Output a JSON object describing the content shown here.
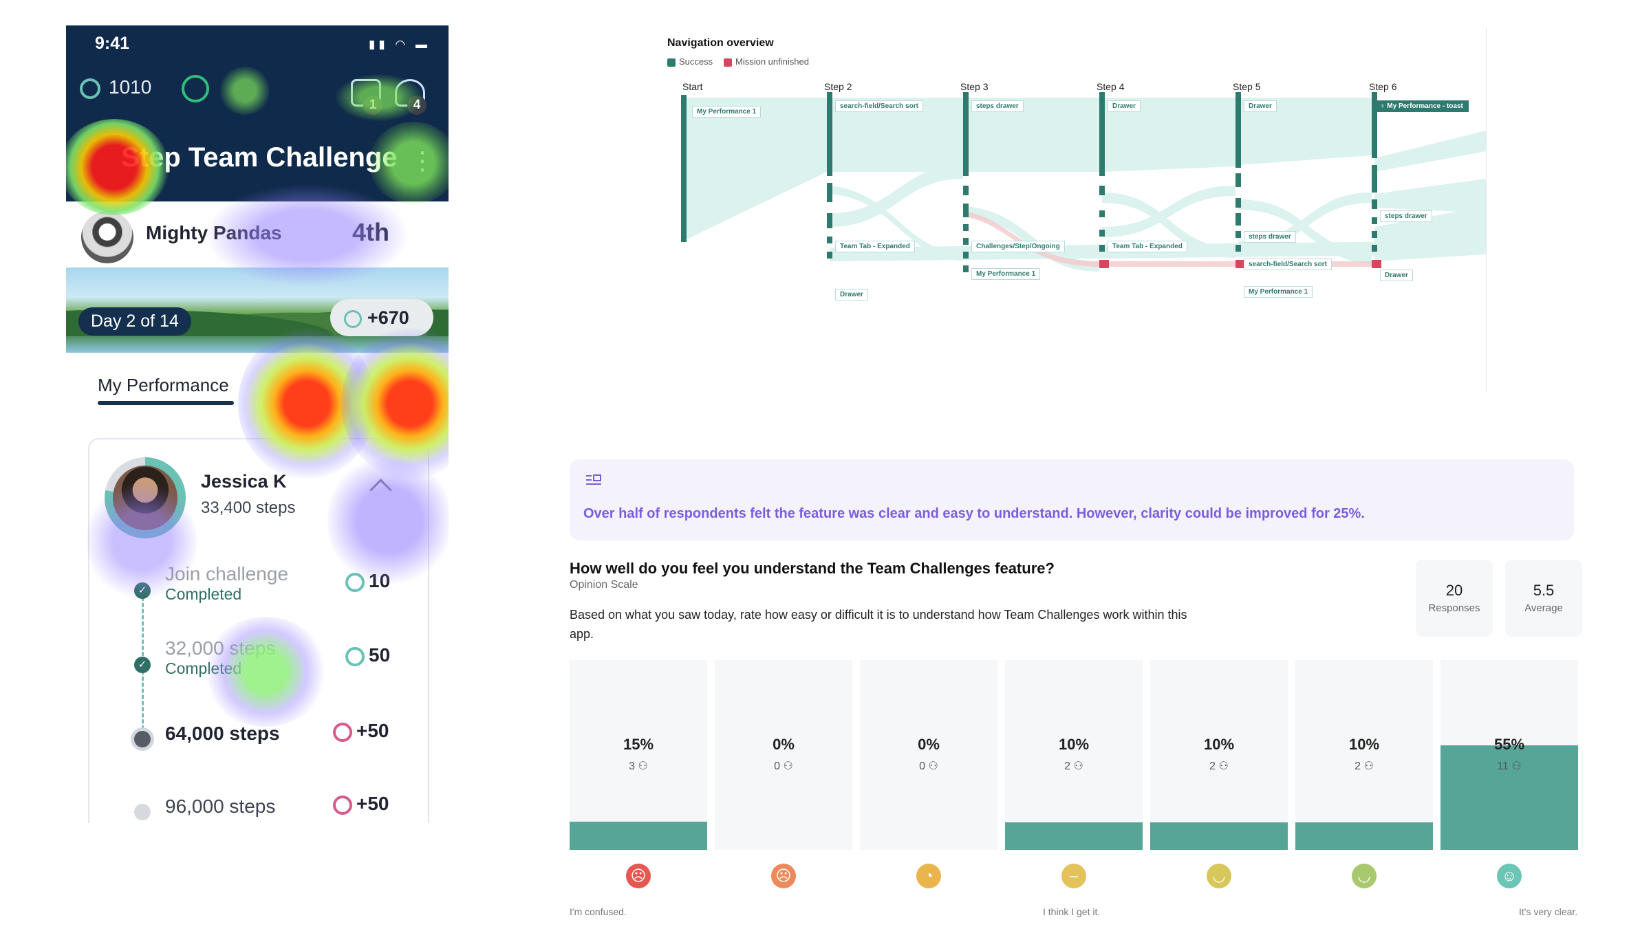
{
  "phone": {
    "status_time": "9:41",
    "points": "1010",
    "messages_badge": "1",
    "notifications_badge": "4",
    "title": "Step Team Challenge",
    "team": {
      "name": "Mighty Pandas",
      "rank": "4th"
    },
    "banner": {
      "day": "Day 2 of 14",
      "bonus": "+670"
    },
    "tabs": [
      {
        "label": "My Performance",
        "active": true
      }
    ],
    "profile": {
      "name": "Jessica K",
      "steps": "33,400 steps"
    },
    "milestones": [
      {
        "title": "Join challenge",
        "status": "Completed",
        "reward": "10",
        "state": "done"
      },
      {
        "title": "32,000 steps",
        "status": "Completed",
        "reward": "50",
        "state": "done"
      },
      {
        "title": "64,000 steps",
        "status": "",
        "reward": "+50",
        "state": "current"
      },
      {
        "title": "96,000 steps",
        "status": "",
        "reward": "+50",
        "state": "todo"
      }
    ]
  },
  "navigation": {
    "title": "Navigation overview",
    "legend": [
      {
        "label": "Success",
        "color": "#2f7a6e"
      },
      {
        "label": "Mission unfinished",
        "color": "#d9455f"
      }
    ],
    "steps": [
      {
        "label": "Start",
        "nodes": [
          "My Performance 1"
        ]
      },
      {
        "label": "Step 2",
        "nodes": [
          "search-field/Search sort",
          "Team Tab - Expanded",
          "Drawer"
        ]
      },
      {
        "label": "Step 3",
        "nodes": [
          "steps drawer",
          "Challenges/Step/Ongoing",
          "My Performance 1"
        ]
      },
      {
        "label": "Step 4",
        "nodes": [
          "Drawer",
          "Team Tab - Expanded"
        ]
      },
      {
        "label": "Step 5",
        "nodes": [
          "Drawer",
          "steps drawer",
          "search-field/Search sort",
          "My Performance 1"
        ]
      },
      {
        "label": "Step 6",
        "nodes": [
          "My Performance - toast",
          "steps drawer",
          "Drawer"
        ]
      }
    ]
  },
  "insight": {
    "text": "Over half of respondents felt the feature was clear and easy to understand. However, clarity could be improved for 25%."
  },
  "question": {
    "title": "How well do you feel you understand the Team Challenges feature?",
    "type": "Opinion Scale",
    "description": "Based on what you saw today, rate how easy or difficult it is to understand how Team Challenges work within this app.",
    "stats": [
      {
        "value": "20",
        "label": "Responses"
      },
      {
        "value": "5.5",
        "label": "Average"
      }
    ],
    "scale_labels": {
      "low": "I'm confused.",
      "mid": "I think I get it.",
      "high": "It's very clear."
    }
  },
  "chart_data": {
    "type": "bar",
    "categories": [
      "1",
      "2",
      "3",
      "4",
      "5",
      "6",
      "7"
    ],
    "values": [
      15,
      0,
      0,
      10,
      10,
      10,
      55
    ],
    "counts": [
      3,
      0,
      0,
      2,
      2,
      2,
      11
    ],
    "labels": [
      "15%",
      "0%",
      "0%",
      "10%",
      "10%",
      "10%",
      "55%"
    ],
    "ylim": [
      0,
      100
    ],
    "colors": {
      "bar": "#57a597",
      "track": "#f6f7f8"
    },
    "faces": [
      {
        "icon": "frown-face-icon",
        "color": "#e5574f"
      },
      {
        "icon": "sad-face-icon",
        "color": "#ec8a5a"
      },
      {
        "icon": "confused-face-icon",
        "color": "#eab54c"
      },
      {
        "icon": "neutral-face-icon",
        "color": "#e3c15b"
      },
      {
        "icon": "slight-smile-face-icon",
        "color": "#d8c75a"
      },
      {
        "icon": "smile-face-icon",
        "color": "#a8c96e"
      },
      {
        "icon": "grin-face-icon",
        "color": "#6cc6b5"
      }
    ]
  }
}
